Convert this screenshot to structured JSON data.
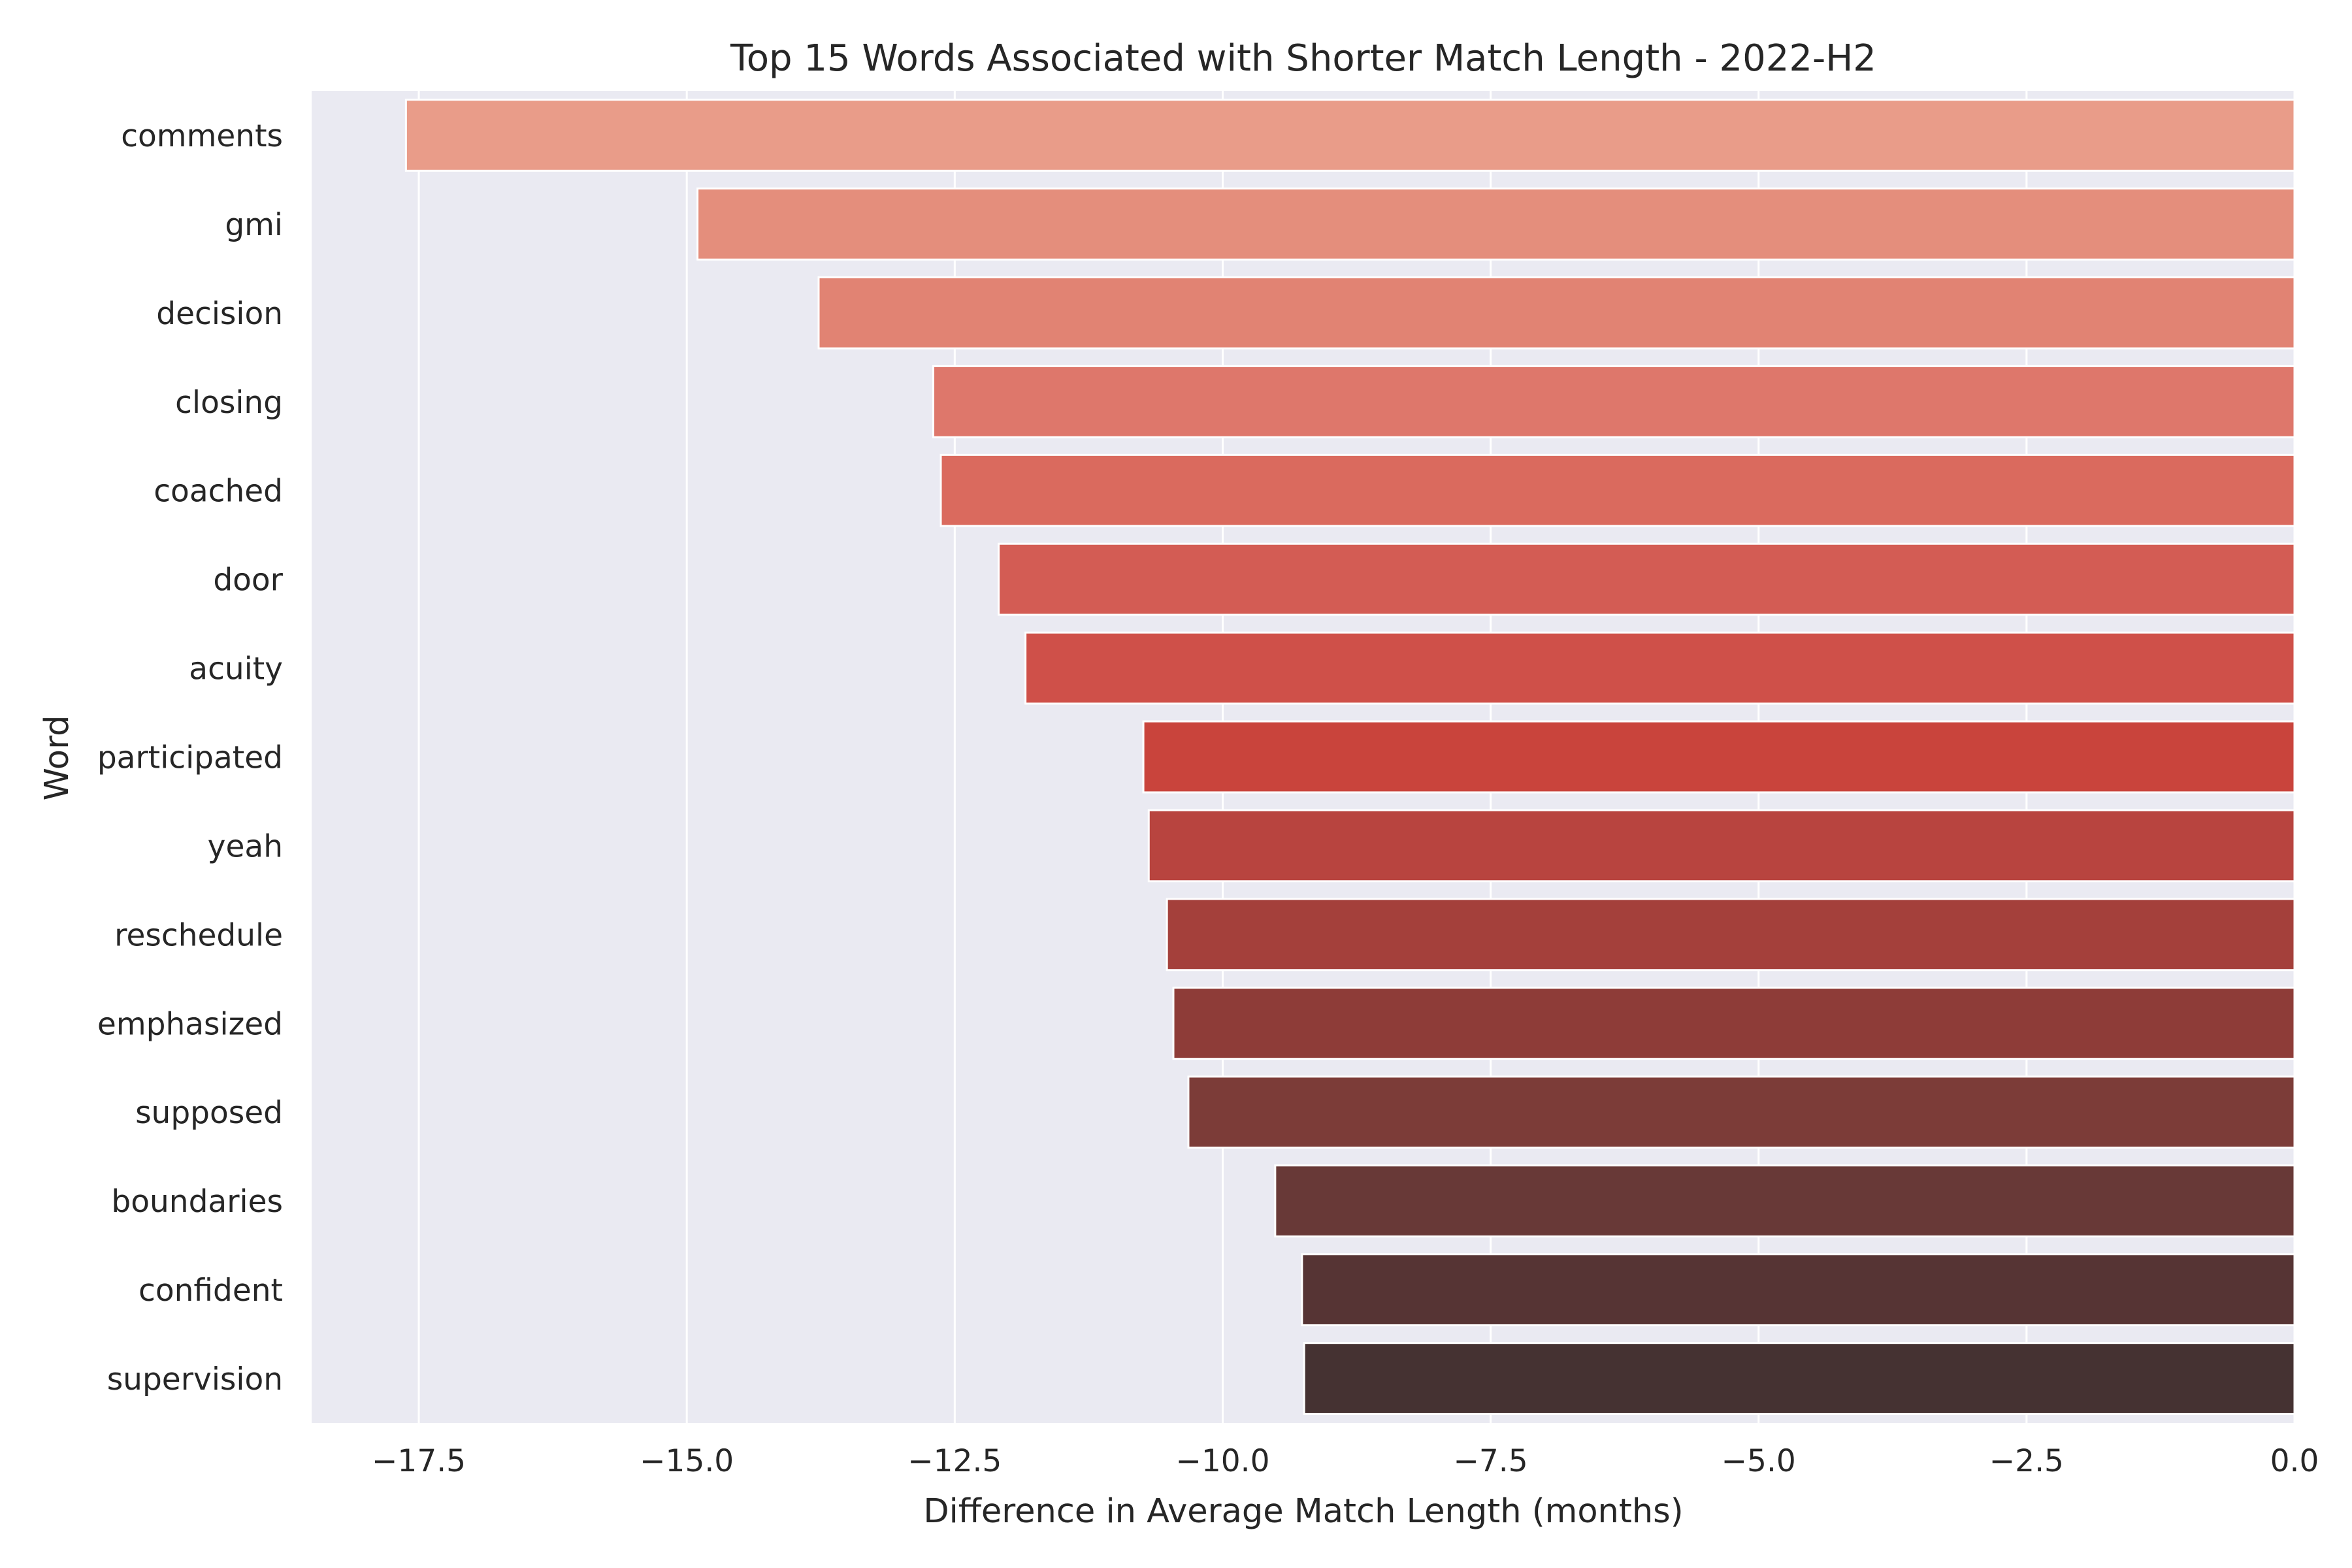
{
  "chart_data": {
    "type": "bar",
    "orientation": "horizontal",
    "title": "Top 15 Words Associated with Shorter Match Length - 2022-H2",
    "xlabel": "Difference in Average Match Length (months)",
    "ylabel": "Word",
    "xlim": [
      -18.5,
      0.0
    ],
    "xticks": [
      -17.5,
      -15.0,
      -12.5,
      -10.0,
      -7.5,
      -5.0,
      -2.5,
      0.0
    ],
    "xtick_labels": [
      "−17.5",
      "−15.0",
      "−12.5",
      "−10.0",
      "−7.5",
      "−5.0",
      "−2.5",
      "0.0"
    ],
    "grid": true,
    "background": "#eaeaf2",
    "categories": [
      "comments",
      "gmi",
      "decision",
      "closing",
      "coached",
      "door",
      "acuity",
      "participated",
      "yeah",
      "reschedule",
      "emphasized",
      "supposed",
      "boundaries",
      "confident",
      "supervision"
    ],
    "values": [
      -17.62,
      -14.9,
      -13.77,
      -12.7,
      -12.63,
      -12.09,
      -11.84,
      -10.74,
      -10.69,
      -10.52,
      -10.46,
      -10.32,
      -9.51,
      -9.26,
      -9.24
    ],
    "colors": [
      "#e99c89",
      "#e48e7c",
      "#e18373",
      "#de776b",
      "#da6a5e",
      "#d35c54",
      "#cf5049",
      "#c9443c",
      "#b8443f",
      "#a4403b",
      "#8e3c38",
      "#7c3c38",
      "#683937",
      "#563434",
      "#453232"
    ]
  }
}
